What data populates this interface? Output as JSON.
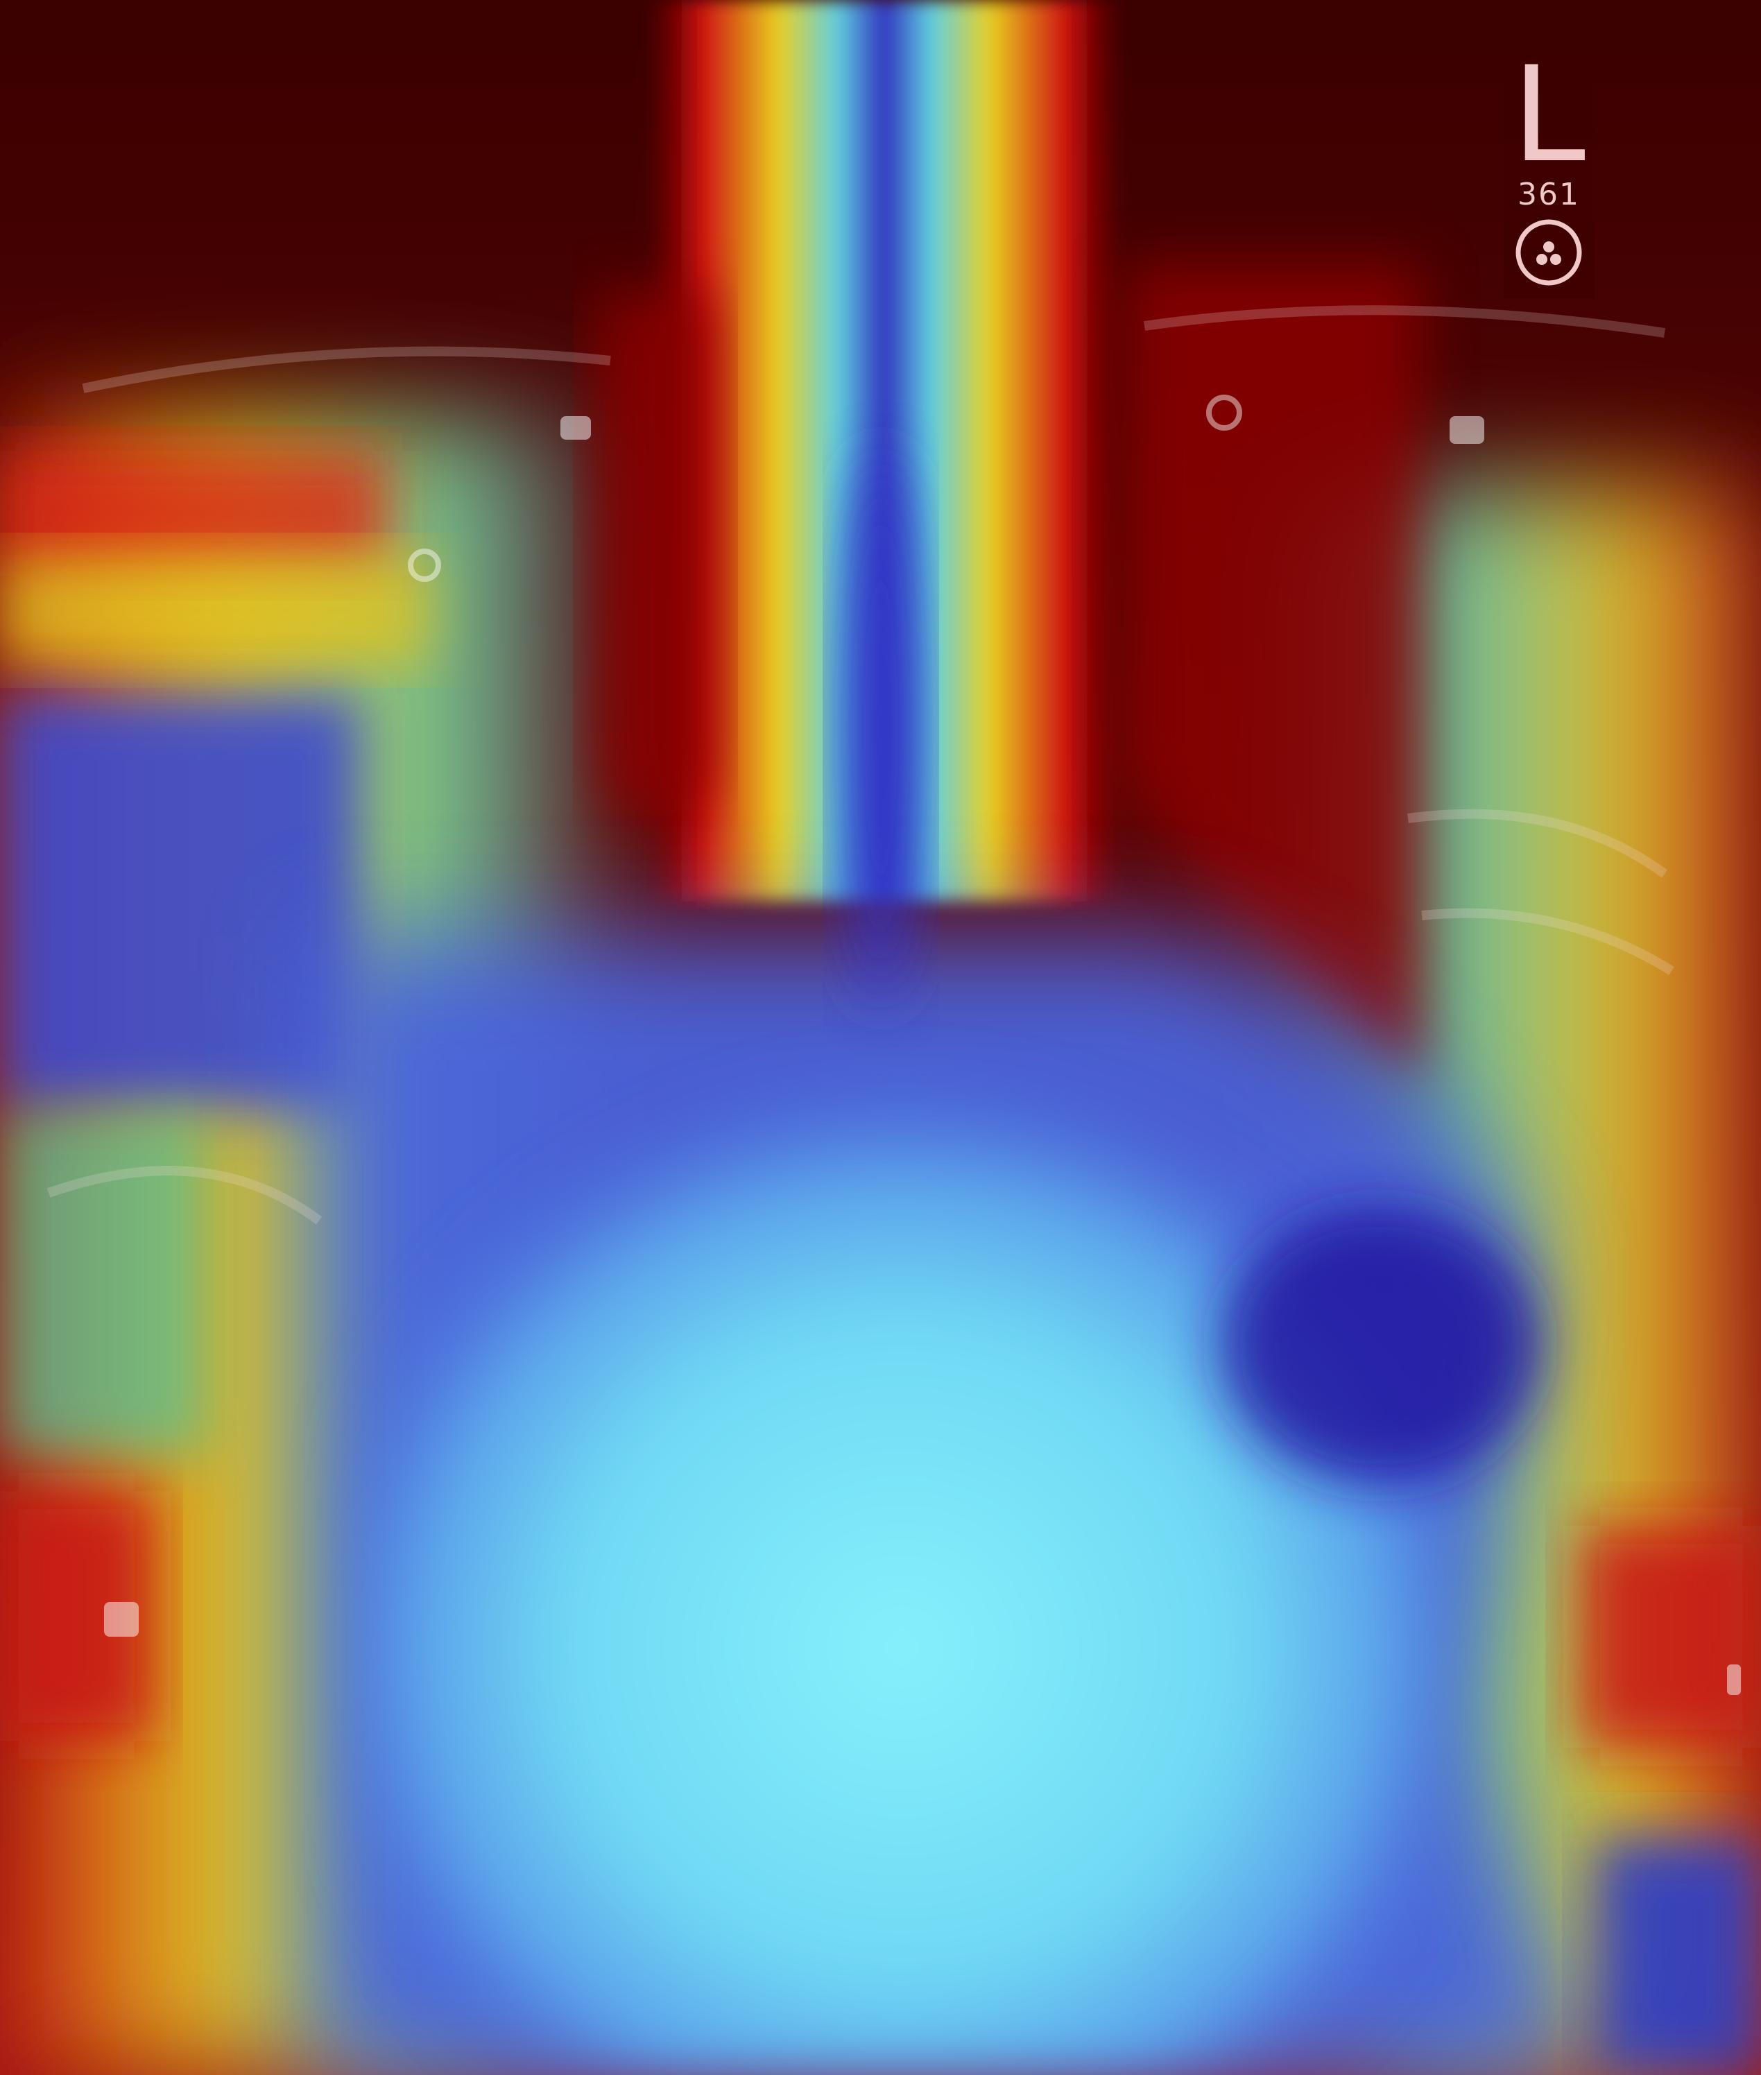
{
  "image": {
    "description_free": true,
    "palette": {
      "background": "#3b0000",
      "hot": "#8b0000",
      "red": "#d01010",
      "yellow": "#e8d020",
      "green": "#4fc06a",
      "cyan": "#78e8f8",
      "blue": "#3a50d8",
      "deep_blue": "#2020a0"
    }
  },
  "marker": {
    "letter": "L",
    "number": "361",
    "symbol": "radiation-symbol-icon"
  }
}
